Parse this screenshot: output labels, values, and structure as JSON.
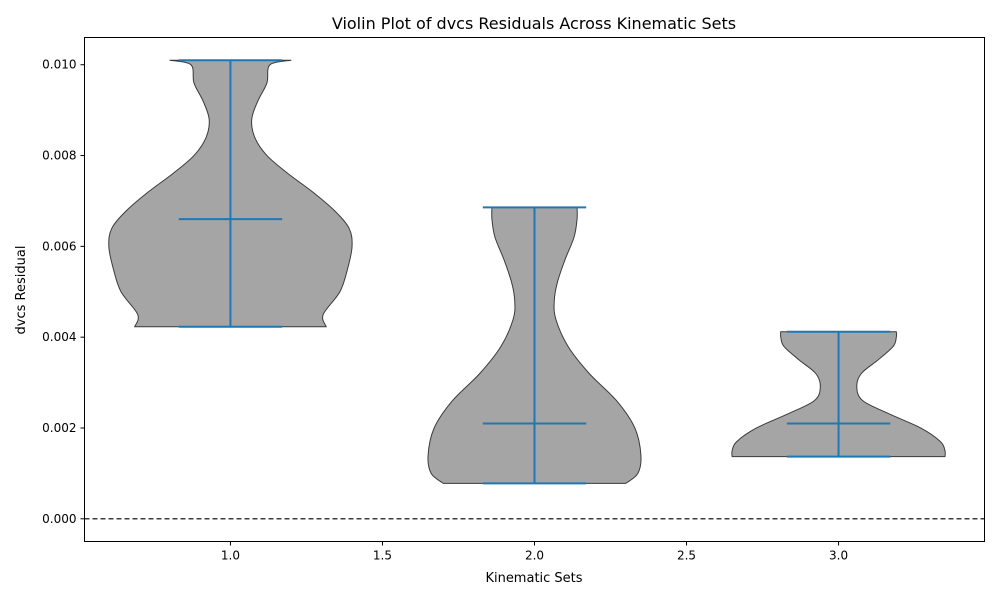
{
  "chart_data": {
    "type": "violin",
    "title": "Violin Plot of dvcs Residuals Across Kinematic Sets",
    "xlabel": "Kinematic Sets",
    "ylabel": "dvcs Residual",
    "xlim": [
      0.52,
      3.48
    ],
    "ylim": [
      -0.0005,
      0.0106
    ],
    "xticks": [
      1.0,
      1.5,
      2.0,
      2.5,
      3.0
    ],
    "xtick_labels": [
      "1.0",
      "1.5",
      "2.0",
      "2.5",
      "3.0"
    ],
    "yticks": [
      0.0,
      0.002,
      0.004,
      0.006,
      0.008,
      0.01
    ],
    "ytick_labels": [
      "0.000",
      "0.002",
      "0.004",
      "0.006",
      "0.008",
      "0.010"
    ],
    "reference_line": {
      "y": 0.0,
      "style": "dashed",
      "color": "#000000"
    },
    "violin_fill": "#a5a5a5",
    "violin_edge": "#3a3a3a",
    "stat_color": "#1f77b4",
    "violins": [
      {
        "position": 1.0,
        "min": 0.00423,
        "median": 0.0066,
        "max": 0.0101,
        "profile": [
          [
            0.00423,
            0.315
          ],
          [
            0.0045,
            0.305
          ],
          [
            0.005,
            0.36
          ],
          [
            0.0055,
            0.385
          ],
          [
            0.006,
            0.4
          ],
          [
            0.0064,
            0.39
          ],
          [
            0.0068,
            0.34
          ],
          [
            0.0072,
            0.27
          ],
          [
            0.0076,
            0.19
          ],
          [
            0.008,
            0.12
          ],
          [
            0.0084,
            0.08
          ],
          [
            0.0088,
            0.07
          ],
          [
            0.0092,
            0.09
          ],
          [
            0.0096,
            0.12
          ],
          [
            0.01,
            0.13
          ],
          [
            0.0101,
            0.2
          ]
        ]
      },
      {
        "position": 2.0,
        "min": 0.00078,
        "median": 0.0021,
        "max": 0.00686,
        "profile": [
          [
            0.00078,
            0.3
          ],
          [
            0.001,
            0.34
          ],
          [
            0.0014,
            0.35
          ],
          [
            0.002,
            0.33
          ],
          [
            0.0026,
            0.27
          ],
          [
            0.0032,
            0.18
          ],
          [
            0.0038,
            0.11
          ],
          [
            0.0044,
            0.07
          ],
          [
            0.0048,
            0.065
          ],
          [
            0.0052,
            0.075
          ],
          [
            0.0057,
            0.1
          ],
          [
            0.0062,
            0.13
          ],
          [
            0.0066,
            0.14
          ],
          [
            0.00686,
            0.14
          ]
        ]
      },
      {
        "position": 3.0,
        "min": 0.00137,
        "median": 0.0021,
        "max": 0.00412,
        "profile": [
          [
            0.00137,
            0.35
          ],
          [
            0.0015,
            0.35
          ],
          [
            0.0017,
            0.335
          ],
          [
            0.002,
            0.27
          ],
          [
            0.0023,
            0.17
          ],
          [
            0.0026,
            0.08
          ],
          [
            0.0029,
            0.06
          ],
          [
            0.0032,
            0.075
          ],
          [
            0.0035,
            0.13
          ],
          [
            0.0038,
            0.18
          ],
          [
            0.004,
            0.19
          ],
          [
            0.00412,
            0.19
          ]
        ]
      }
    ]
  }
}
